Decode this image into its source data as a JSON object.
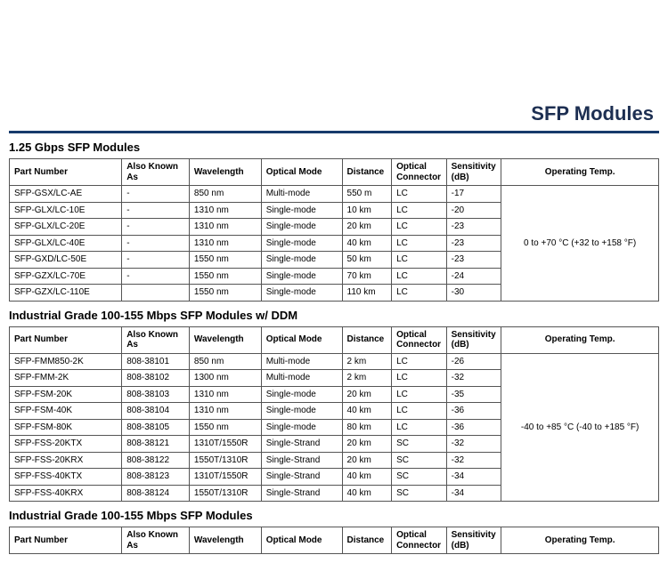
{
  "page_title": "SFP Modules",
  "headers": {
    "part_number": "Part Number",
    "also_known_as": "Also Known As",
    "wavelength": "Wavelength",
    "optical_mode": "Optical Mode",
    "distance": "Distance",
    "optical_connector": "Optical Connector",
    "sensitivity": "Sensitivity (dB)",
    "operating_temp": "Operating Temp."
  },
  "sections": [
    {
      "heading": "1.25 Gbps SFP Modules",
      "temp": "0 to +70 °C (+32 to +158 °F)",
      "rows": [
        {
          "pn": "SFP-GSX/LC-AE",
          "aka": "-",
          "wl": "850 nm",
          "om": "Multi-mode",
          "dist": "550 m",
          "oc": "LC",
          "sens": "-17"
        },
        {
          "pn": "SFP-GLX/LC-10E",
          "aka": "-",
          "wl": "1310 nm",
          "om": "Single-mode",
          "dist": "10 km",
          "oc": "LC",
          "sens": "-20"
        },
        {
          "pn": "SFP-GLX/LC-20E",
          "aka": "-",
          "wl": "1310 nm",
          "om": "Single-mode",
          "dist": "20 km",
          "oc": "LC",
          "sens": "-23"
        },
        {
          "pn": "SFP-GLX/LC-40E",
          "aka": "-",
          "wl": "1310 nm",
          "om": "Single-mode",
          "dist": "40 km",
          "oc": "LC",
          "sens": "-23"
        },
        {
          "pn": "SFP-GXD/LC-50E",
          "aka": "-",
          "wl": "1550 nm",
          "om": "Single-mode",
          "dist": "50 km",
          "oc": "LC",
          "sens": "-23"
        },
        {
          "pn": "SFP-GZX/LC-70E",
          "aka": "-",
          "wl": "1550 nm",
          "om": "Single-mode",
          "dist": "70 km",
          "oc": "LC",
          "sens": "-24"
        },
        {
          "pn": "SFP-GZX/LC-110E",
          "aka": "",
          "wl": "1550 nm",
          "om": "Single-mode",
          "dist": "110 km",
          "oc": "LC",
          "sens": "-30"
        }
      ]
    },
    {
      "heading": "Industrial Grade 100-155 Mbps SFP Modules  w/ DDM",
      "temp": "-40 to +85 °C (-40 to +185 °F)",
      "rows": [
        {
          "pn": "SFP-FMM850-2K",
          "aka": "808-38101",
          "wl": "850 nm",
          "om": "Multi-mode",
          "dist": "2 km",
          "oc": "LC",
          "sens": "-26"
        },
        {
          "pn": "SFP-FMM-2K",
          "aka": "808-38102",
          "wl": "1300 nm",
          "om": "Multi-mode",
          "dist": "2 km",
          "oc": "LC",
          "sens": "-32"
        },
        {
          "pn": "SFP-FSM-20K",
          "aka": "808-38103",
          "wl": "1310 nm",
          "om": "Single-mode",
          "dist": "20 km",
          "oc": "LC",
          "sens": "-35"
        },
        {
          "pn": "SFP-FSM-40K",
          "aka": "808-38104",
          "wl": "1310 nm",
          "om": "Single-mode",
          "dist": "40 km",
          "oc": "LC",
          "sens": "-36"
        },
        {
          "pn": "SFP-FSM-80K",
          "aka": "808-38105",
          "wl": "1550 nm",
          "om": "Single-mode",
          "dist": "80 km",
          "oc": "LC",
          "sens": "-36"
        },
        {
          "pn": "SFP-FSS-20KTX",
          "aka": "808-38121",
          "wl": "1310T/1550R",
          "om": "Single-Strand",
          "dist": "20 km",
          "oc": "SC",
          "sens": "-32"
        },
        {
          "pn": "SFP-FSS-20KRX",
          "aka": "808-38122",
          "wl": "1550T/1310R",
          "om": "Single-Strand",
          "dist": "20 km",
          "oc": "SC",
          "sens": "-32"
        },
        {
          "pn": "SFP-FSS-40KTX",
          "aka": "808-38123",
          "wl": "1310T/1550R",
          "om": "Single-Strand",
          "dist": "40 km",
          "oc": "SC",
          "sens": "-34"
        },
        {
          "pn": "SFP-FSS-40KRX",
          "aka": "808-38124",
          "wl": "1550T/1310R",
          "om": "Single-Strand",
          "dist": "40 km",
          "oc": "SC",
          "sens": "-34"
        }
      ]
    },
    {
      "heading": "Industrial Grade 100-155 Mbps SFP Modules",
      "temp": "",
      "rows": []
    }
  ]
}
